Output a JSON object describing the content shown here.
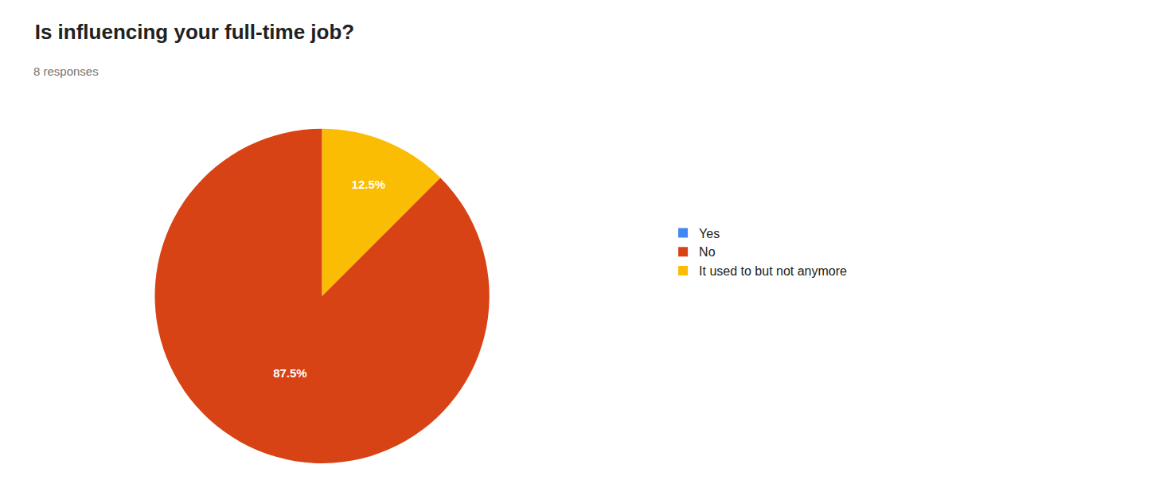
{
  "chart_data": {
    "type": "pie",
    "title": "Is influencing your full-time job?",
    "subtitle": "8 responses",
    "categories": [
      "Yes",
      "No",
      "It used to but not anymore"
    ],
    "values": [
      0,
      87.5,
      12.5
    ],
    "value_labels": [
      null,
      "87.5%",
      "12.5%"
    ],
    "colors": [
      "#4285F4",
      "#D84315",
      "#FBBC04"
    ],
    "data_labels": true,
    "legend": "right"
  }
}
